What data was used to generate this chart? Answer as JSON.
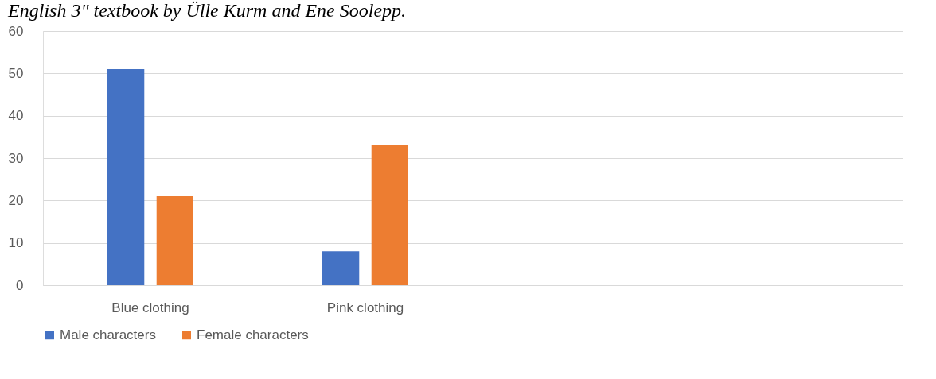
{
  "chart_data": {
    "type": "bar",
    "title": "English 3\" textbook by Ülle Kurm and Ene Soolepp.",
    "categories": [
      "Blue clothing",
      "Pink clothing",
      null,
      null
    ],
    "series": [
      {
        "name": "Male characters",
        "color": "#4472c4",
        "values": [
          51,
          8,
          null,
          null
        ]
      },
      {
        "name": "Female characters",
        "color": "#ed7d31",
        "values": [
          21,
          33,
          null,
          null
        ]
      }
    ],
    "ylim": [
      0,
      60
    ],
    "yticks": [
      0,
      10,
      20,
      30,
      40,
      50,
      60
    ],
    "grid": "y",
    "legend": "bottom"
  }
}
